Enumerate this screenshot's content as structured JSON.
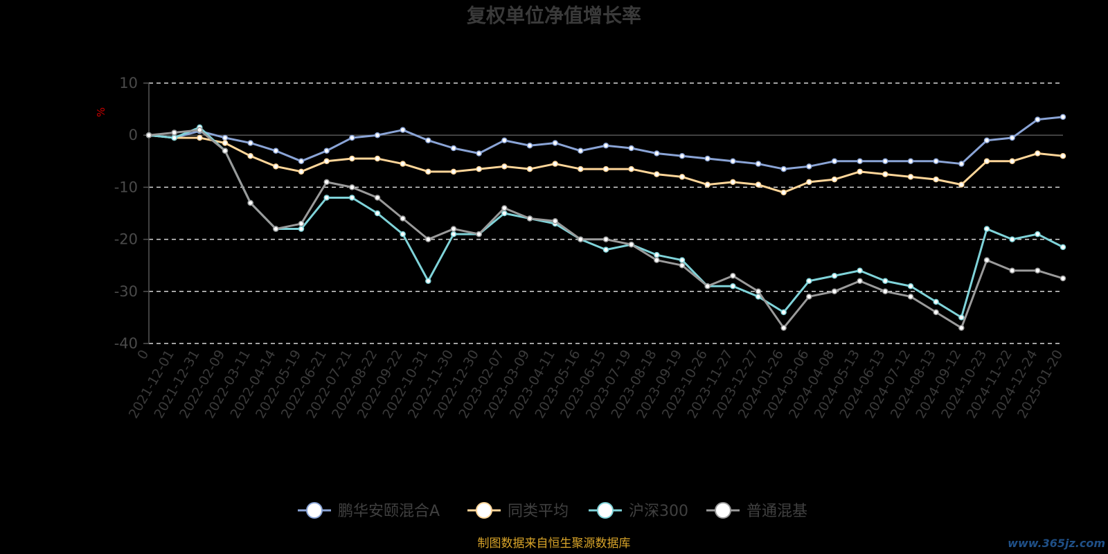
{
  "chart_data": {
    "type": "line",
    "title": "复权单位净值增长率",
    "ylabel": "%",
    "ylim": [
      -40,
      10
    ],
    "yticks": [
      10,
      0,
      -10,
      -20,
      -30,
      -40
    ],
    "x_tick_labels": [
      "0",
      "2021-12-01",
      "2021-12-31",
      "2022-02-09",
      "2022-03-11",
      "2022-04-14",
      "2022-05-19",
      "2022-06-21",
      "2022-07-21",
      "2022-08-22",
      "2022-09-22",
      "2022-10-31",
      "2022-11-30",
      "2022-12-30",
      "2023-02-07",
      "2023-03-09",
      "2023-04-11",
      "2023-05-16",
      "2023-06-15",
      "2023-07-19",
      "2023-08-18",
      "2023-09-19",
      "2023-10-26",
      "2023-11-27",
      "2023-12-27",
      "2024-01-26",
      "2024-03-06",
      "2024-04-08",
      "2024-05-13",
      "2024-06-13",
      "2024-07-12",
      "2024-08-13",
      "2024-09-12",
      "2024-10-23",
      "2024-11-22",
      "2024-12-24",
      "2025-01-20"
    ],
    "grid": "dashed horizontal",
    "legend_position": "bottom",
    "series": [
      {
        "name": "鹏华安颐混合A",
        "color": "#8aa4d6",
        "values": [
          0,
          -0.5,
          0.8,
          -0.5,
          -1.5,
          -3,
          -5,
          -3,
          -0.5,
          0,
          1,
          -1,
          -2.5,
          -3.5,
          -1,
          -2,
          -1.5,
          -3,
          -2,
          -2.5,
          -3.5,
          -4,
          -4.5,
          -5,
          -5.5,
          -6.5,
          -6,
          -5,
          -5,
          -5,
          -5,
          -5,
          -5.5,
          -1,
          -0.5,
          3,
          3.5
        ]
      },
      {
        "name": "同类平均",
        "color": "#ffd699",
        "values": [
          0,
          -0.5,
          -0.5,
          -1.5,
          -4,
          -6,
          -7,
          -5,
          -4.5,
          -4.5,
          -5.5,
          -7,
          -7,
          -6.5,
          -6,
          -6.5,
          -5.5,
          -6.5,
          -6.5,
          -6.5,
          -7.5,
          -8,
          -9.5,
          -9,
          -9.5,
          -11,
          -9,
          -8.5,
          -7,
          -7.5,
          -8,
          -8.5,
          -9.5,
          -5,
          -5,
          -3.5,
          -4
        ]
      },
      {
        "name": "沪深300",
        "color": "#7fd3d9",
        "values": [
          0,
          -0.5,
          1.5,
          -3,
          -13,
          -18,
          -18,
          -12,
          -12,
          -15,
          -19,
          -28,
          -19,
          -19,
          -15,
          -16,
          -17,
          -20,
          -22,
          -21,
          -23,
          -24,
          -29,
          -29,
          -31,
          -34,
          -28,
          -27,
          -26,
          -28,
          -29,
          -32,
          -35,
          -18,
          -20,
          -19,
          -21.5
        ]
      },
      {
        "name": "普通混基",
        "color": "#9a9a9a",
        "values": [
          0,
          0.5,
          1,
          -3,
          -13,
          -18,
          -17,
          -9,
          -10,
          -12,
          -16,
          -20,
          -18,
          -19,
          -14,
          -16,
          -16.5,
          -20,
          -20,
          -21,
          -24,
          -25,
          -29,
          -27,
          -30,
          -37,
          -31,
          -30,
          -28,
          -30,
          -31,
          -34,
          -37,
          -24,
          -26,
          -26,
          -27.5
        ]
      }
    ]
  },
  "source_text": "制图数据来自恒生聚源数据库",
  "watermark": "www.365jz.com"
}
